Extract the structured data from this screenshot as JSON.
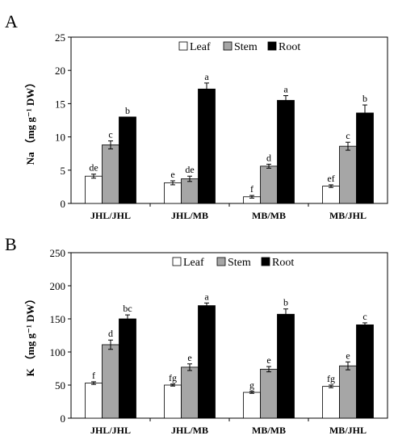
{
  "figure": {
    "colors": {
      "Leaf": "#ffffff",
      "Stem": "#a6a6a6",
      "Root": "#000000",
      "axis": "#000000"
    }
  },
  "chart_data": [
    {
      "type": "bar",
      "panel_label": "A",
      "ylabel": "Na （mg g⁻¹ DW）",
      "ylim": [
        0,
        25
      ],
      "yticks": [
        0,
        5,
        10,
        15,
        20,
        25
      ],
      "categories": [
        "JHL/JHL",
        "JHL/MB",
        "MB/MB",
        "MB/JHL"
      ],
      "legend_position": "top-right",
      "series": [
        {
          "name": "Leaf",
          "values": [
            4.1,
            3.1,
            1.0,
            2.6
          ],
          "errors": [
            0.3,
            0.3,
            0.2,
            0.2
          ],
          "letters": [
            "de",
            "e",
            "f",
            "ef"
          ]
        },
        {
          "name": "Stem",
          "values": [
            8.8,
            3.7,
            5.6,
            8.6
          ],
          "errors": [
            0.6,
            0.4,
            0.3,
            0.6
          ],
          "letters": [
            "c",
            "de",
            "d",
            "c"
          ]
        },
        {
          "name": "Root",
          "values": [
            13.0,
            17.2,
            15.5,
            13.6
          ],
          "errors": [
            0,
            0.9,
            0.7,
            1.2
          ],
          "letters": [
            "b",
            "a",
            "a",
            "b"
          ]
        }
      ]
    },
    {
      "type": "bar",
      "panel_label": "B",
      "ylabel": "K （mg g⁻¹ DW）",
      "ylim": [
        0,
        250
      ],
      "yticks": [
        0,
        50,
        100,
        150,
        200,
        250
      ],
      "categories": [
        "JHL/JHL",
        "JHL/MB",
        "MB/MB",
        "MB/JHL"
      ],
      "legend_position": "top-right",
      "series": [
        {
          "name": "Leaf",
          "values": [
            53,
            50,
            39,
            48
          ],
          "errors": [
            2,
            1.5,
            1.5,
            2
          ],
          "letters": [
            "f",
            "fg",
            "g",
            "fg"
          ]
        },
        {
          "name": "Stem",
          "values": [
            111,
            77,
            74,
            79
          ],
          "errors": [
            7,
            5,
            4,
            6
          ],
          "letters": [
            "d",
            "e",
            "e",
            "e"
          ]
        },
        {
          "name": "Root",
          "values": [
            150,
            170,
            157,
            141
          ],
          "errors": [
            6,
            4,
            8,
            3
          ],
          "letters": [
            "bc",
            "a",
            "b",
            "c"
          ]
        }
      ]
    }
  ]
}
